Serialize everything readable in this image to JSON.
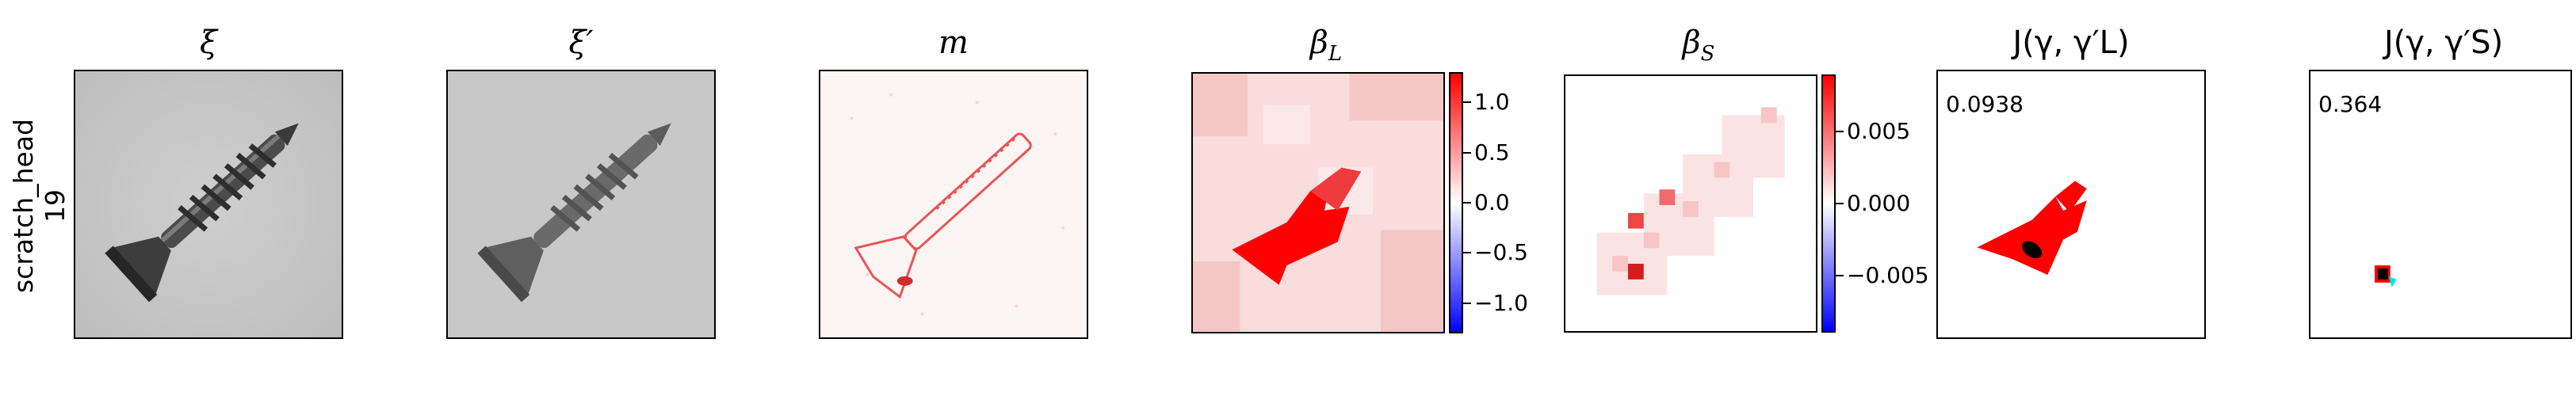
{
  "row": {
    "label_line1": "scratch_head",
    "label_line2": "19"
  },
  "panels": {
    "xi": {
      "title": "ξ",
      "image": "screw-grayscale-photo"
    },
    "xi_prime": {
      "title": "ξ′",
      "image": "screw-grayscale-photo-blurred"
    },
    "m": {
      "title": "m",
      "image": "red-difference-map"
    },
    "beta_l": {
      "title_main": "β",
      "title_sub": "L",
      "colorbar": {
        "ticks": [
          "1.0",
          "0.5",
          "0.0",
          "−0.5",
          "−1.0"
        ],
        "range": [
          -1.3,
          1.3
        ]
      }
    },
    "beta_s": {
      "title_main": "β",
      "title_sub": "S",
      "colorbar": {
        "ticks": [
          "0.005",
          "0.000",
          "−0.005"
        ],
        "range": [
          -0.009,
          0.009
        ]
      }
    },
    "j_l": {
      "title": "J(γ, γ′L)",
      "value": "0.0938"
    },
    "j_s": {
      "title": "J(γ, γ′S)",
      "value": "0.364"
    }
  },
  "colors": {
    "positive": "#ff0000",
    "neutral": "#ffffff",
    "negative": "#0000ff",
    "intersection": "#000000",
    "cyan": "#00e5ee"
  }
}
